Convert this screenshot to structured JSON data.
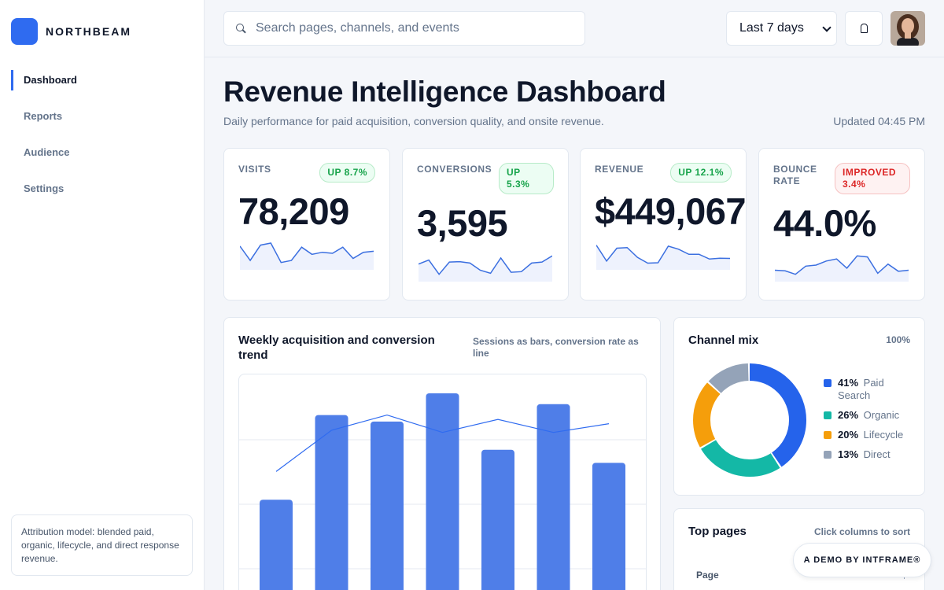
{
  "brand": {
    "name": "NORTHBEAM",
    "color": "#2f6bf0"
  },
  "nav": {
    "items": [
      {
        "label": "Dashboard",
        "active": true
      },
      {
        "label": "Reports",
        "active": false
      },
      {
        "label": "Audience",
        "active": false
      },
      {
        "label": "Settings",
        "active": false
      }
    ]
  },
  "attribution_note": "Attribution model: blended paid, organic, lifecycle, and direct response revenue.",
  "topbar": {
    "search_placeholder": "Search pages, channels, and events",
    "date_range": "Last 7 days",
    "icons": {
      "search": "search-icon",
      "notifications": "bell-icon",
      "avatar": "user-avatar"
    }
  },
  "header": {
    "title": "Revenue Intelligence Dashboard",
    "subtitle": "Daily performance for paid acquisition, conversion quality, and onsite revenue.",
    "updated": "Updated 04:45 PM"
  },
  "kpis": [
    {
      "label": "VISITS",
      "badge": "UP 8.7%",
      "trend": "up",
      "value": "78,209",
      "spark": [
        0.85,
        0.15,
        0.9,
        1.0,
        0.05,
        0.15,
        0.8,
        0.45,
        0.55,
        0.5,
        0.8,
        0.25,
        0.55,
        0.6
      ]
    },
    {
      "label": "CONVERSIONS",
      "badge": "UP 5.3%",
      "trend": "up",
      "value": "3,595",
      "spark": [
        0.55,
        0.75,
        0.05,
        0.65,
        0.67,
        0.6,
        0.25,
        0.1,
        0.85,
        0.15,
        0.18,
        0.6,
        0.65,
        0.95
      ]
    },
    {
      "label": "REVENUE",
      "badge": "UP 12.1%",
      "trend": "up",
      "value": "$449,067",
      "spark": [
        0.9,
        0.12,
        0.75,
        0.78,
        0.3,
        0.02,
        0.04,
        0.85,
        0.7,
        0.45,
        0.45,
        0.22,
        0.26,
        0.25
      ]
    },
    {
      "label": "BOUNCE RATE",
      "badge": "IMPROVED 3.4%",
      "trend": "down",
      "value": "44.0%",
      "spark": [
        0.25,
        0.22,
        0.05,
        0.45,
        0.5,
        0.7,
        0.8,
        0.35,
        0.95,
        0.9,
        0.1,
        0.55,
        0.2,
        0.25
      ]
    }
  ],
  "trend_card": {
    "title": "Weekly acquisition and conversion trend",
    "note": "Sessions as bars, conversion rate as line"
  },
  "chart_data": {
    "type": "bar",
    "title": "Weekly acquisition and conversion trend",
    "categories": [
      "",
      "",
      "",
      "",
      "",
      "",
      ""
    ],
    "series": [
      {
        "type": "bar",
        "color": "#4f7ee8",
        "values": [
          0.51,
          0.9,
          0.87,
          1.0,
          0.74,
          0.95,
          0.68
        ]
      },
      {
        "type": "line",
        "color": "#2f6bf0",
        "values": [
          0.64,
          0.83,
          0.9,
          0.82,
          0.88,
          0.82,
          0.86
        ]
      }
    ],
    "gridlines": true
  },
  "channel_mix": {
    "title": "Channel mix",
    "total": "100%",
    "segments": [
      {
        "pct_label": "41%",
        "name": "Paid Search",
        "value": 41,
        "color": "#2563eb"
      },
      {
        "pct_label": "26%",
        "name": "Organic",
        "value": 26,
        "color": "#14b8a6"
      },
      {
        "pct_label": "20%",
        "name": "Lifecycle",
        "value": 20,
        "color": "#f59e0b"
      },
      {
        "pct_label": "13%",
        "name": "Direct",
        "value": 13,
        "color": "#94a3b8"
      }
    ]
  },
  "top_pages": {
    "title": "Top pages",
    "hint": "Click columns to sort",
    "columns": [
      "Page"
    ]
  },
  "demo_badge": "A DEMO BY INTFRAME®"
}
